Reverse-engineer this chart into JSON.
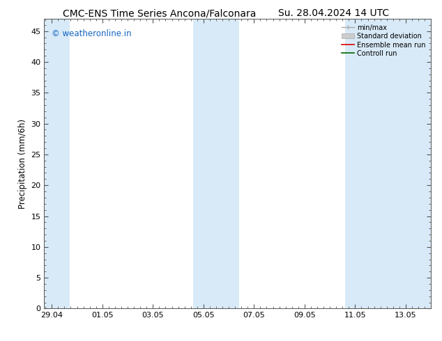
{
  "title_left": "CMC-ENS Time Series Ancona/Falconara",
  "title_right": "Su. 28.04.2024 14 UTC",
  "ylabel": "Precipitation (mm/6h)",
  "watermark": "© weatheronline.in",
  "watermark_color": "#1565c0",
  "x_tick_labels": [
    "29.04",
    "01.05",
    "03.05",
    "05.05",
    "07.05",
    "09.05",
    "11.05",
    "13.05"
  ],
  "x_tick_positions": [
    0,
    2,
    4,
    6,
    8,
    10,
    12,
    14
  ],
  "ylim": [
    0,
    47
  ],
  "yticks": [
    0,
    5,
    10,
    15,
    20,
    25,
    30,
    35,
    40,
    45
  ],
  "xlim": [
    -0.3,
    15.0
  ],
  "shaded_regions": [
    {
      "x_start": -0.3,
      "x_end": 0.65,
      "color": "#dae8f7"
    },
    {
      "x_start": 5.65,
      "x_end": 6.65,
      "color": "#dae8f7"
    },
    {
      "x_start": 5.65,
      "x_end": 7.35,
      "color": "#dae8f7"
    },
    {
      "x_start": 11.65,
      "x_end": 12.65,
      "color": "#dae8f7"
    },
    {
      "x_start": 12.65,
      "x_end": 15.0,
      "color": "#dae8f7"
    }
  ],
  "background_color": "#ffffff",
  "plot_bg_color": "#ffffff",
  "spine_color": "#555555",
  "title_fontsize": 10,
  "axis_label_fontsize": 8.5,
  "tick_fontsize": 8,
  "watermark_fontsize": 8.5
}
